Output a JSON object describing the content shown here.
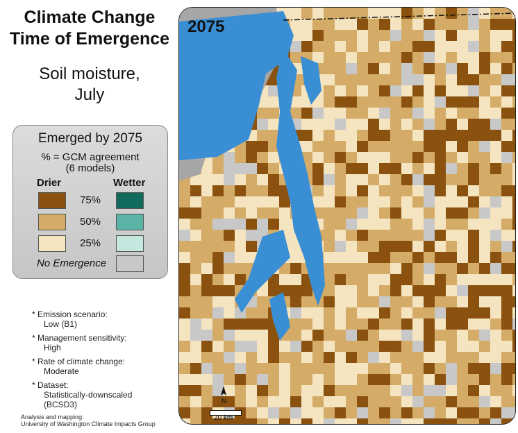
{
  "title_line1": "Climate Change",
  "title_line2": "Time of Emergence",
  "subtitle_line1": "Soil moisture,",
  "subtitle_line2": "July",
  "legend": {
    "title": "Emerged by 2075",
    "subtitle_line1": "% = GCM agreement",
    "subtitle_line2": "(6 models)",
    "drier_label": "Drier",
    "wetter_label": "Wetter",
    "rows": [
      {
        "pct": "75%",
        "drier_color": "#8b520f",
        "wetter_color": "#116b5c"
      },
      {
        "pct": "50%",
        "drier_color": "#d4ac68",
        "wetter_color": "#5bb3a6"
      },
      {
        "pct": "25%",
        "drier_color": "#f5e4c0",
        "wetter_color": "#c4e8df"
      }
    ],
    "no_emergence_label": "No Emergence",
    "no_emergence_color": "#c8c8c8"
  },
  "notes": [
    {
      "label": "* Emission scenario:",
      "value": "Low (B1)"
    },
    {
      "label": "* Management sensitivity:",
      "value": "High"
    },
    {
      "label": "* Rate of climate change:",
      "value": "Moderate"
    },
    {
      "label": "* Dataset:",
      "value": "Statistically-downscaled",
      "value2": "(BCSD3)"
    }
  ],
  "credit_line1": "Analysis and mapping:",
  "credit_line2": "University of Washington Climate Impacts Group",
  "map": {
    "year": "2075",
    "north_label": "N",
    "scale_label": "20 km",
    "water_color": "#3a8ed4",
    "outside_color": "#a6a6a6"
  }
}
